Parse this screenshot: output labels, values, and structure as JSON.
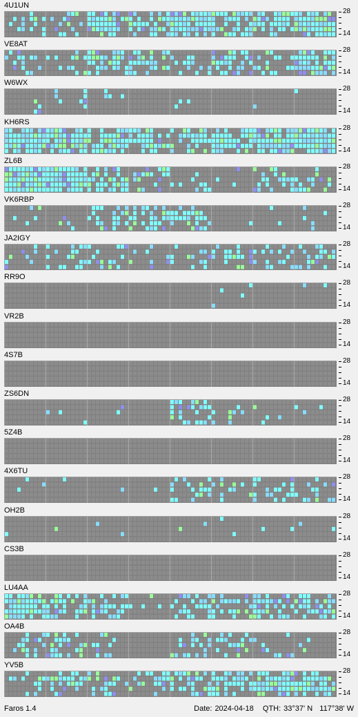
{
  "beacons": [
    {
      "name": "4U1UN",
      "activity": [
        0.25,
        0.25,
        0.7,
        0.6,
        0.85,
        0.7,
        0.6,
        0.9
      ],
      "peak": [
        0,
        1,
        0.7,
        0.5,
        0.3,
        0.2,
        0.3,
        0.9
      ]
    },
    {
      "name": "VE8AT",
      "activity": [
        0.2,
        0.2,
        0.6,
        0.5,
        0.3,
        0.4,
        0.3,
        0.8
      ],
      "peak": [
        0,
        0,
        0.4,
        0.2,
        0.3,
        0.3,
        0.5,
        0.8
      ]
    },
    {
      "name": "W6WX",
      "activity": [
        0.05,
        0.1,
        0.1,
        0.05,
        0.05,
        0.02,
        0.05,
        0.05
      ],
      "peak": [
        0.1,
        0.2,
        0.2,
        0.2,
        0.2,
        0.4,
        0.2,
        0.2
      ]
    },
    {
      "name": "KH6RS",
      "activity": [
        0.9,
        0.85,
        0.7,
        0.5,
        0.5,
        0.7,
        0.75,
        0.95
      ],
      "peak": [
        0.3,
        0.3,
        0.3,
        0.2,
        0.3,
        0.3,
        0.3,
        0.3
      ]
    },
    {
      "name": "ZL6B",
      "activity": [
        0.9,
        0.9,
        0.5,
        0.3,
        0.15,
        0.05,
        0.3,
        0.3
      ],
      "peak": [
        0.3,
        0.4,
        0.4,
        0.2,
        0.2,
        0.2,
        0.4,
        0.3
      ]
    },
    {
      "name": "VK6RBP",
      "activity": [
        0.15,
        0.1,
        0.45,
        0.55,
        0.45,
        0.1,
        0.05,
        0.05
      ],
      "peak": [
        0.3,
        0.3,
        0.5,
        0.3,
        0.5,
        0.3,
        0.2,
        0.2
      ]
    },
    {
      "name": "JA2IGY",
      "activity": [
        0.15,
        0.3,
        0.35,
        0.2,
        0.2,
        0.35,
        0.25,
        0.3
      ],
      "peak": [
        0.4,
        0.4,
        0.4,
        0.4,
        0.4,
        0.4,
        0.4,
        0.4
      ]
    },
    {
      "name": "RR9O",
      "activity": [
        0.02,
        0.02,
        0.01,
        0.01,
        0.01,
        0.06,
        0.01,
        0.01
      ],
      "peak": [
        0.2,
        0.2,
        0.2,
        0.2,
        0.2,
        0.2,
        0.2,
        0.2
      ]
    },
    {
      "name": "VR2B",
      "activity": [
        0,
        0,
        0,
        0,
        0,
        0,
        0,
        0
      ],
      "peak": [
        0,
        0,
        0,
        0,
        0,
        0,
        0,
        0
      ]
    },
    {
      "name": "4S7B",
      "activity": [
        0,
        0,
        0,
        0,
        0,
        0,
        0,
        0
      ],
      "peak": [
        0,
        0,
        0,
        0,
        0,
        0,
        0,
        0
      ]
    },
    {
      "name": "ZS6DN",
      "activity": [
        0.02,
        0.1,
        0.05,
        0.02,
        0.4,
        0.2,
        0.08,
        0.02
      ],
      "peak": [
        0.2,
        0.2,
        0.2,
        0.2,
        0.5,
        0.3,
        0.2,
        0.2
      ]
    },
    {
      "name": "5Z4B",
      "activity": [
        0,
        0,
        0,
        0,
        0,
        0,
        0,
        0
      ],
      "peak": [
        0,
        0,
        0,
        0,
        0,
        0,
        0,
        0
      ]
    },
    {
      "name": "4X6TU",
      "activity": [
        0.05,
        0.05,
        0.02,
        0.02,
        0.25,
        0.2,
        0.35,
        0.2
      ],
      "peak": [
        0.2,
        0.2,
        0.2,
        0.2,
        0.5,
        0.4,
        0.4,
        0.4
      ]
    },
    {
      "name": "OH2B",
      "activity": [
        0.02,
        0.02,
        0.01,
        0.01,
        0.02,
        0.04,
        0.01,
        0.01
      ],
      "peak": [
        0.3,
        0.3,
        0.3,
        0.3,
        0.3,
        0.3,
        0.3,
        0.3
      ]
    },
    {
      "name": "CS3B",
      "activity": [
        0,
        0,
        0,
        0,
        0,
        0,
        0,
        0
      ],
      "peak": [
        0,
        0,
        0,
        0,
        0,
        0,
        0,
        0
      ]
    },
    {
      "name": "LU4AA",
      "activity": [
        0.75,
        0.65,
        0.35,
        0.05,
        0.35,
        0.45,
        0.45,
        0.55
      ],
      "peak": [
        0.6,
        0.4,
        0.3,
        0.2,
        0.4,
        0.5,
        0.5,
        0.4
      ]
    },
    {
      "name": "OA4B",
      "activity": [
        0.3,
        0.4,
        0.2,
        0.02,
        0.35,
        0.35,
        0.15,
        0.1
      ],
      "peak": [
        0.3,
        0.5,
        0.3,
        0.2,
        0.4,
        0.4,
        0.3,
        0.3
      ]
    },
    {
      "name": "YV5B",
      "activity": [
        0.2,
        0.45,
        0.4,
        0.3,
        0.45,
        0.55,
        0.75,
        0.6
      ],
      "peak": [
        0.4,
        0.6,
        0.5,
        0.5,
        0.6,
        0.5,
        0.7,
        0.6
      ]
    }
  ],
  "scale_labels": {
    "top": "28",
    "bottom": "14"
  },
  "footer": {
    "app": "Faros 1.4",
    "date_label": "Date:",
    "date": "2024-04-18",
    "qth_label": "QTH:",
    "lat": "33°37' N",
    "lon": "117°38' W"
  },
  "colors": {
    "grid_bg": "#808080",
    "cell_empty": "#8c8c8c",
    "cell_low": "#7fffff",
    "cell_mid": "#88ddff",
    "cell_high": "#99ff99",
    "cell_purple": "#8f8fef",
    "divider": "#a8a8a8"
  }
}
